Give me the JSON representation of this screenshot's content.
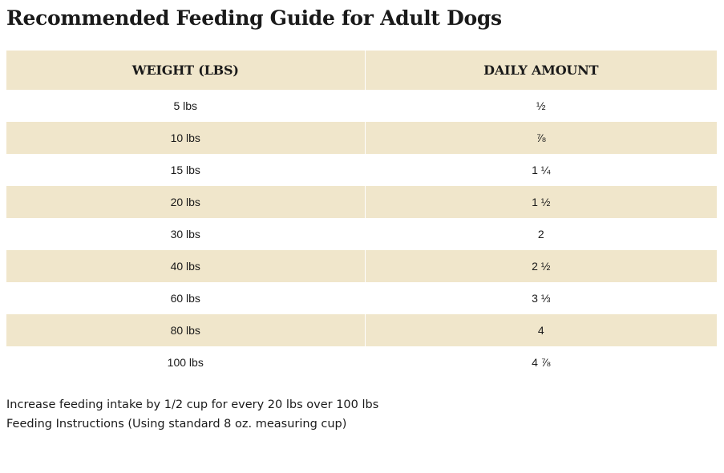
{
  "title": "Recommended Feeding Guide for Adult Dogs",
  "table": {
    "headers": [
      "WEIGHT (LBS)",
      "DAILY AMOUNT"
    ],
    "rows": [
      {
        "weight": "5 lbs",
        "amount": "½"
      },
      {
        "weight": "10 lbs",
        "amount": "⅞"
      },
      {
        "weight": "15 lbs",
        "amount": "1 ¼"
      },
      {
        "weight": "20 lbs",
        "amount": "1 ½"
      },
      {
        "weight": "30 lbs",
        "amount": "2"
      },
      {
        "weight": "40 lbs",
        "amount": "2 ½"
      },
      {
        "weight": "60 lbs",
        "amount": "3 ⅓"
      },
      {
        "weight": "80 lbs",
        "amount": "4"
      },
      {
        "weight": "100 lbs",
        "amount": "4 ⅞"
      }
    ]
  },
  "notes": [
    "Increase feeding intake by 1/2 cup for every 20 lbs over 100 lbs",
    "Feeding Instructions (Using standard 8 oz. measuring cup)"
  ],
  "colors": {
    "header_bg": "#f0e6cb",
    "row_shade": "#f0e6cb",
    "text": "#1a1a1a"
  }
}
